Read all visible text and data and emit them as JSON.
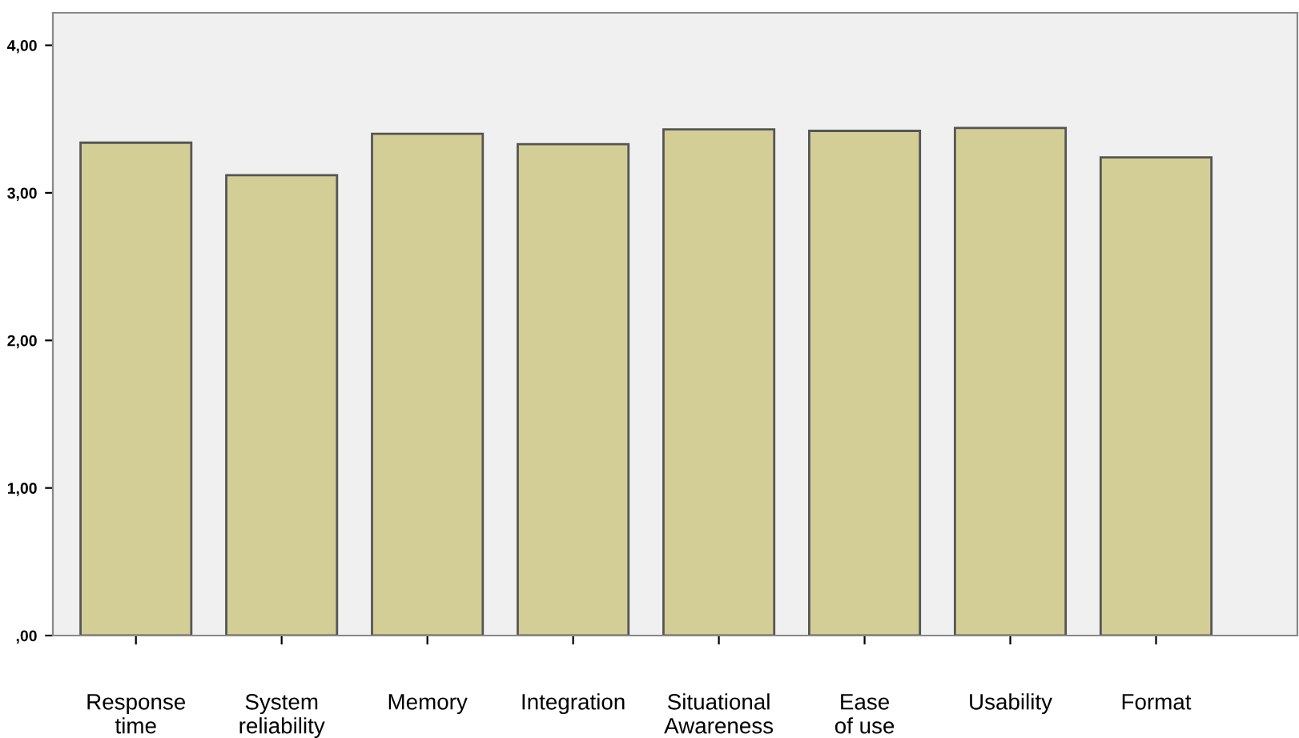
{
  "chart_data": {
    "type": "bar",
    "categories": [
      "Response\ntime",
      "System\nreliability",
      "Memory",
      "Integration",
      "Situational\nAwareness",
      "Ease\nof use",
      "Usability",
      "Format"
    ],
    "values": [
      3.34,
      3.12,
      3.4,
      3.33,
      3.43,
      3.42,
      3.44,
      3.24
    ],
    "color": "#d3ce96",
    "ylim": [
      0,
      4.22
    ],
    "yticks": [
      {
        "value": 0,
        "label": ",00"
      },
      {
        "value": 1,
        "label": "1,00"
      },
      {
        "value": 2,
        "label": "2,00"
      },
      {
        "value": 3,
        "label": "3,00"
      },
      {
        "value": 4,
        "label": "4,00"
      }
    ],
    "grid": false,
    "legend": false
  }
}
